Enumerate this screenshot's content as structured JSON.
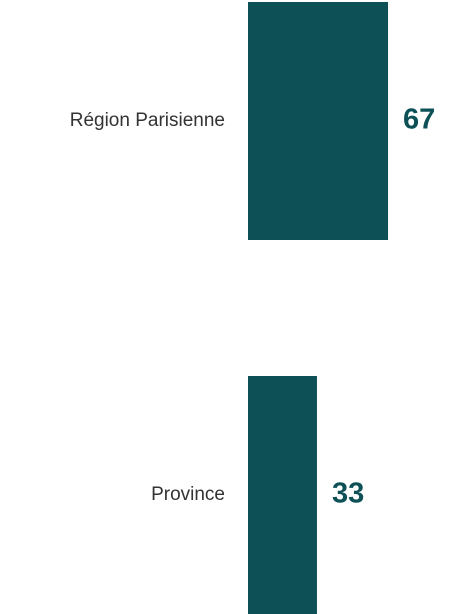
{
  "chart_data": {
    "type": "bar",
    "orientation": "horizontal",
    "categories": [
      "Région Parisienne",
      "Province"
    ],
    "values": [
      67,
      33
    ],
    "color": "#0d5157"
  }
}
